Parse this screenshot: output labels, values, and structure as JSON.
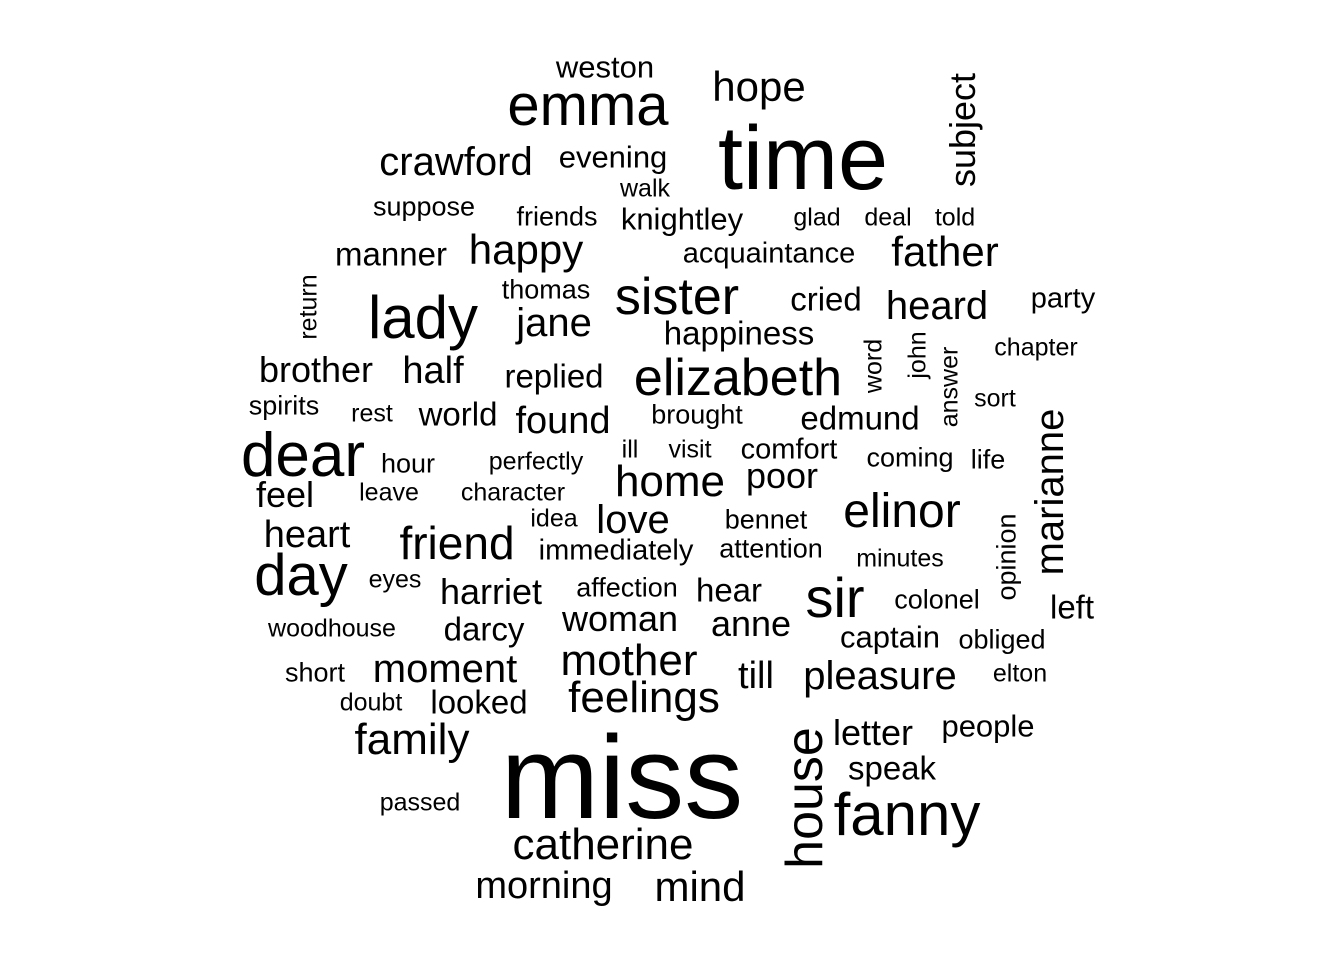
{
  "words": [
    {
      "text": "miss",
      "weight": 1.0
    },
    {
      "text": "time",
      "weight": 0.86
    },
    {
      "text": "emma",
      "weight": 0.6
    },
    {
      "text": "dear",
      "weight": 0.6
    },
    {
      "text": "fanny",
      "weight": 0.6
    },
    {
      "text": "house",
      "weight": 0.55
    },
    {
      "text": "lady",
      "weight": 0.58
    },
    {
      "text": "day",
      "weight": 0.58
    },
    {
      "text": "sir",
      "weight": 0.55
    },
    {
      "text": "elizabeth",
      "weight": 0.52
    },
    {
      "text": "sister",
      "weight": 0.52
    },
    {
      "text": "elinor",
      "weight": 0.48
    },
    {
      "text": "friend",
      "weight": 0.46
    },
    {
      "text": "home",
      "weight": 0.44
    },
    {
      "text": "mother",
      "weight": 0.44
    },
    {
      "text": "feelings",
      "weight": 0.44
    },
    {
      "text": "family",
      "weight": 0.44
    },
    {
      "text": "catherine",
      "weight": 0.44
    },
    {
      "text": "marianne",
      "weight": 0.44
    },
    {
      "text": "hope",
      "weight": 0.42
    },
    {
      "text": "father",
      "weight": 0.42
    },
    {
      "text": "happy",
      "weight": 0.42
    },
    {
      "text": "crawford",
      "weight": 0.4
    },
    {
      "text": "jane",
      "weight": 0.4
    },
    {
      "text": "heard",
      "weight": 0.4
    },
    {
      "text": "love",
      "weight": 0.4
    },
    {
      "text": "moment",
      "weight": 0.4
    },
    {
      "text": "mind",
      "weight": 0.4
    },
    {
      "text": "pleasure",
      "weight": 0.4
    },
    {
      "text": "subject",
      "weight": 0.36
    },
    {
      "text": "half",
      "weight": 0.38
    },
    {
      "text": "found",
      "weight": 0.38
    },
    {
      "text": "heart",
      "weight": 0.38
    },
    {
      "text": "morning",
      "weight": 0.38
    },
    {
      "text": "till",
      "weight": 0.38
    },
    {
      "text": "poor",
      "weight": 0.36
    },
    {
      "text": "harriet",
      "weight": 0.36
    },
    {
      "text": "woman",
      "weight": 0.36
    },
    {
      "text": "anne",
      "weight": 0.36
    },
    {
      "text": "letter",
      "weight": 0.36
    },
    {
      "text": "brother",
      "weight": 0.36
    },
    {
      "text": "feel",
      "weight": 0.36
    },
    {
      "text": "edmund",
      "weight": 0.33
    },
    {
      "text": "replied",
      "weight": 0.33
    },
    {
      "text": "manner",
      "weight": 0.33
    },
    {
      "text": "cried",
      "weight": 0.33
    },
    {
      "text": "happiness",
      "weight": 0.33
    },
    {
      "text": "world",
      "weight": 0.33
    },
    {
      "text": "darcy",
      "weight": 0.33
    },
    {
      "text": "hear",
      "weight": 0.33
    },
    {
      "text": "speak",
      "weight": 0.33
    },
    {
      "text": "people",
      "weight": 0.31
    },
    {
      "text": "looked",
      "weight": 0.33
    },
    {
      "text": "left",
      "weight": 0.33
    },
    {
      "text": "captain",
      "weight": 0.31
    },
    {
      "text": "weston",
      "weight": 0.31
    },
    {
      "text": "evening",
      "weight": 0.31
    },
    {
      "text": "knightley",
      "weight": 0.31
    },
    {
      "text": "acquaintance",
      "weight": 0.29
    },
    {
      "text": "party",
      "weight": 0.29
    },
    {
      "text": "bennet",
      "weight": 0.27
    },
    {
      "text": "comfort",
      "weight": 0.29
    },
    {
      "text": "colonel",
      "weight": 0.27
    },
    {
      "text": "opinion",
      "weight": 0.27
    },
    {
      "text": "obliged",
      "weight": 0.27
    },
    {
      "text": "suppose",
      "weight": 0.27
    },
    {
      "text": "friends",
      "weight": 0.27
    },
    {
      "text": "thomas",
      "weight": 0.27
    },
    {
      "text": "brought",
      "weight": 0.27
    },
    {
      "text": "immediately",
      "weight": 0.29
    },
    {
      "text": "attention",
      "weight": 0.27
    },
    {
      "text": "affection",
      "weight": 0.27
    },
    {
      "text": "short",
      "weight": 0.27
    },
    {
      "text": "coming",
      "weight": 0.27
    },
    {
      "text": "life",
      "weight": 0.27
    },
    {
      "text": "sort",
      "weight": 0.25
    },
    {
      "text": "spirits",
      "weight": 0.27
    },
    {
      "text": "hour",
      "weight": 0.27
    },
    {
      "text": "walk",
      "weight": 0.25
    },
    {
      "text": "glad",
      "weight": 0.25
    },
    {
      "text": "deal",
      "weight": 0.25
    },
    {
      "text": "told",
      "weight": 0.25
    },
    {
      "text": "return",
      "weight": 0.25
    },
    {
      "text": "word",
      "weight": 0.25
    },
    {
      "text": "john",
      "weight": 0.25
    },
    {
      "text": "answer",
      "weight": 0.25
    },
    {
      "text": "chapter",
      "weight": 0.25
    },
    {
      "text": "rest",
      "weight": 0.25
    },
    {
      "text": "ill",
      "weight": 0.25
    },
    {
      "text": "visit",
      "weight": 0.25
    },
    {
      "text": "perfectly",
      "weight": 0.25
    },
    {
      "text": "leave",
      "weight": 0.25
    },
    {
      "text": "character",
      "weight": 0.25
    },
    {
      "text": "idea",
      "weight": 0.25
    },
    {
      "text": "minutes",
      "weight": 0.25
    },
    {
      "text": "eyes",
      "weight": 0.25
    },
    {
      "text": "woodhouse",
      "weight": 0.25
    },
    {
      "text": "doubt",
      "weight": 0.25
    },
    {
      "text": "elton",
      "weight": 0.25
    },
    {
      "text": "passed",
      "weight": 0.25
    }
  ]
}
